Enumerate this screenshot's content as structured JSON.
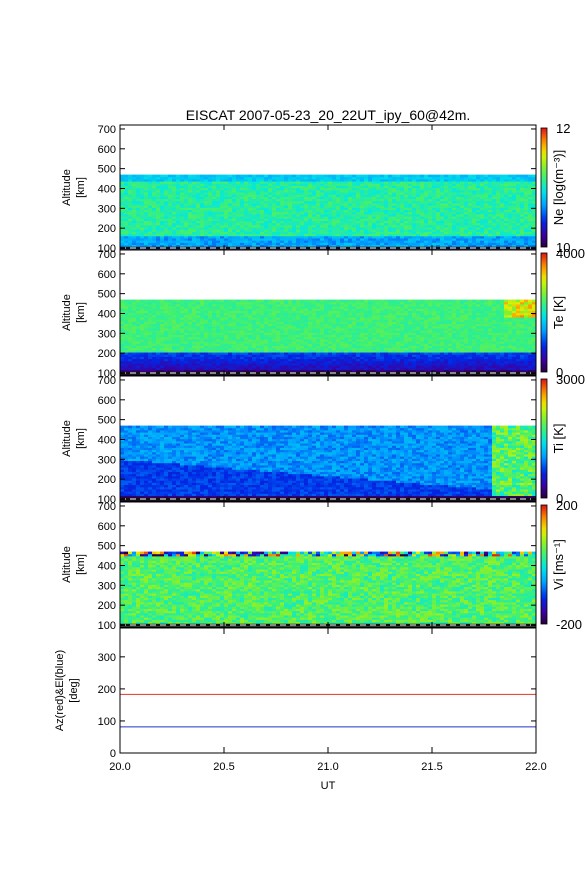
{
  "chart_data": {
    "type": "heatmap",
    "title": "EISCAT 2007-05-23_20_22UT_ipy_60@42m.",
    "x": {
      "label": "UT",
      "range": [
        20.0,
        22.0
      ],
      "ticks": [
        "20.0",
        "20.5",
        "21.0",
        "21.5",
        "22.0"
      ],
      "tick_values": [
        20.0,
        20.5,
        21.0,
        21.5,
        22.0
      ]
    },
    "panels": [
      {
        "param": "Ne",
        "ylabel_line1": "Altitude",
        "ylabel_line2": "[km]",
        "yrange": [
          90,
          720
        ],
        "yticks": [
          "700",
          "600",
          "500",
          "400",
          "300",
          "200",
          "100"
        ],
        "ytick_values": [
          700,
          600,
          500,
          400,
          300,
          200,
          100
        ],
        "data_altitude_range": [
          95,
          470
        ],
        "colorbar": {
          "label": "Ne [log(m⁻³)]",
          "range": [
            10,
            12
          ],
          "ticks": [
            "12",
            "10"
          ],
          "tick_values": [
            12,
            10
          ]
        }
      },
      {
        "param": "Te",
        "ylabel_line1": "Altitude",
        "ylabel_line2": "[km]",
        "yrange": [
          90,
          720
        ],
        "yticks": [
          "700",
          "600",
          "500",
          "400",
          "300",
          "200",
          "100"
        ],
        "ytick_values": [
          700,
          600,
          500,
          400,
          300,
          200,
          100
        ],
        "data_altitude_range": [
          95,
          470
        ],
        "colorbar": {
          "label": "Te [K]",
          "range": [
            0,
            4000
          ],
          "ticks": [
            "4000",
            "0"
          ],
          "tick_values": [
            4000,
            0
          ]
        }
      },
      {
        "param": "Ti",
        "ylabel_line1": "Altitude",
        "ylabel_line2": "[km]",
        "yrange": [
          90,
          720
        ],
        "yticks": [
          "700",
          "600",
          "500",
          "400",
          "300",
          "200",
          "100"
        ],
        "ytick_values": [
          700,
          600,
          500,
          400,
          300,
          200,
          100
        ],
        "data_altitude_range": [
          95,
          470
        ],
        "colorbar": {
          "label": "Ti [K]",
          "range": [
            0,
            3000
          ],
          "ticks": [
            "3000",
            "0"
          ],
          "tick_values": [
            3000,
            0
          ]
        }
      },
      {
        "param": "Vi",
        "ylabel_line1": "Altitude",
        "ylabel_line2": "[km]",
        "yrange": [
          90,
          720
        ],
        "yticks": [
          "700",
          "600",
          "500",
          "400",
          "300",
          "200",
          "100"
        ],
        "ytick_values": [
          700,
          600,
          500,
          400,
          300,
          200,
          100
        ],
        "data_altitude_range": [
          95,
          470
        ],
        "colorbar": {
          "label": "Vi [ms⁻¹]",
          "range": [
            -200,
            200
          ],
          "ticks": [
            "200",
            "-200"
          ],
          "tick_values": [
            200,
            -200
          ]
        }
      }
    ],
    "pointing": {
      "ylabel_line1": "Az(red)&El(blue)",
      "ylabel_line2": "[deg]",
      "yrange": [
        0,
        390
      ],
      "yticks": [
        "300",
        "200",
        "100",
        "0"
      ],
      "ytick_values": [
        300,
        200,
        100,
        0
      ],
      "series": [
        {
          "color": "#e8331f",
          "value": 183
        },
        {
          "color": "#2030c8",
          "value": 81.6
        }
      ]
    }
  }
}
